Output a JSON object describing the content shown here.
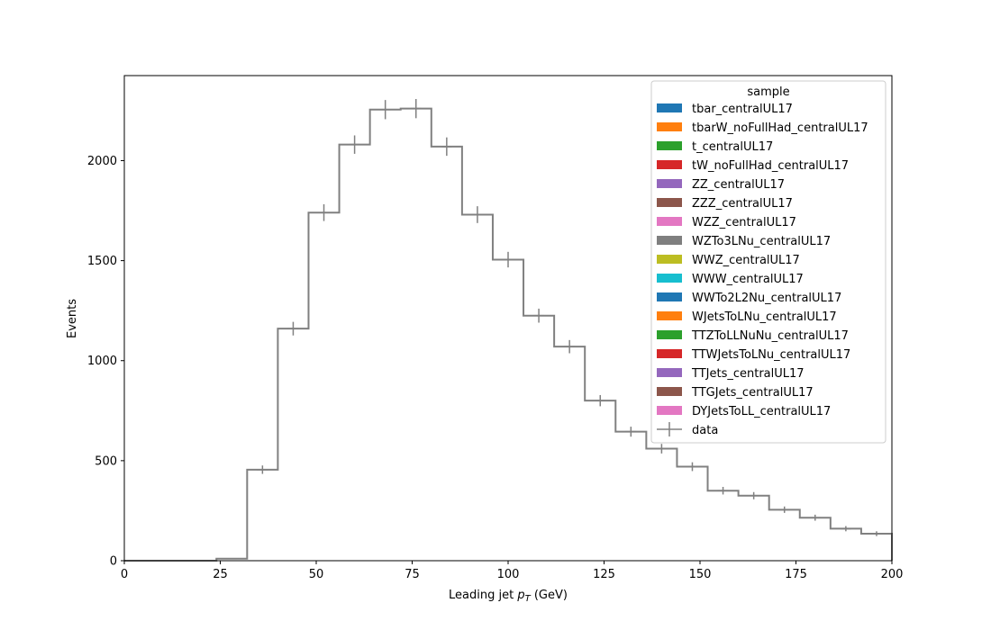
{
  "chart_data": {
    "type": "histogram",
    "xlabel": "Leading jet  p_T (GeV)",
    "xlabel_parts": [
      "Leading jet  ",
      "p",
      "T",
      " (GeV)"
    ],
    "ylabel": "Events",
    "xlim": [
      0,
      200
    ],
    "ylim": [
      0,
      2425
    ],
    "x_ticks": [
      0,
      25,
      50,
      75,
      100,
      125,
      150,
      175,
      200
    ],
    "y_ticks": [
      0,
      500,
      1000,
      1500,
      2000
    ],
    "grid": false,
    "legend": {
      "title": "sample",
      "placement": "top-right",
      "entries": [
        {
          "label": "tbar_centralUL17",
          "color": "#1f77b4"
        },
        {
          "label": "tbarW_noFullHad_centralUL17",
          "color": "#ff7f0e"
        },
        {
          "label": "t_centralUL17",
          "color": "#2ca02c"
        },
        {
          "label": "tW_noFullHad_centralUL17",
          "color": "#d62728"
        },
        {
          "label": "ZZ_centralUL17",
          "color": "#9467bd"
        },
        {
          "label": "ZZZ_centralUL17",
          "color": "#8c564b"
        },
        {
          "label": "WZZ_centralUL17",
          "color": "#e377c2"
        },
        {
          "label": "WZTo3LNu_centralUL17",
          "color": "#7f7f7f"
        },
        {
          "label": "WWZ_centralUL17",
          "color": "#bcbd22"
        },
        {
          "label": "WWW_centralUL17",
          "color": "#17becf"
        },
        {
          "label": "WWTo2L2Nu_centralUL17",
          "color": "#1f77b4"
        },
        {
          "label": "WJetsToLNu_centralUL17",
          "color": "#ff7f0e"
        },
        {
          "label": "TTZToLLNuNu_centralUL17",
          "color": "#2ca02c"
        },
        {
          "label": "TTWJetsToLNu_centralUL17",
          "color": "#d62728"
        },
        {
          "label": "TTJets_centralUL17",
          "color": "#9467bd"
        },
        {
          "label": "TTGJets_centralUL17",
          "color": "#8c564b"
        },
        {
          "label": "DYJetsToLL_centralUL17",
          "color": "#e377c2"
        }
      ],
      "data_label": "data",
      "data_color": "#808080"
    },
    "bin_edges": [
      0,
      8,
      16,
      24,
      32,
      40,
      48,
      56,
      64,
      72,
      80,
      88,
      96,
      104,
      112,
      120,
      128,
      136,
      144,
      152,
      160,
      168,
      176,
      184,
      192,
      200
    ],
    "values": [
      0,
      0,
      0,
      10,
      455,
      1160,
      1740,
      2080,
      2255,
      2260,
      2070,
      1730,
      1505,
      1225,
      1070,
      800,
      645,
      560,
      470,
      350,
      325,
      255,
      215,
      160,
      135
    ],
    "errors": [
      0,
      0,
      0,
      3,
      21,
      34,
      42,
      46,
      48,
      48,
      46,
      42,
      39,
      35,
      33,
      28,
      25,
      24,
      22,
      19,
      18,
      16,
      15,
      13,
      12
    ]
  }
}
